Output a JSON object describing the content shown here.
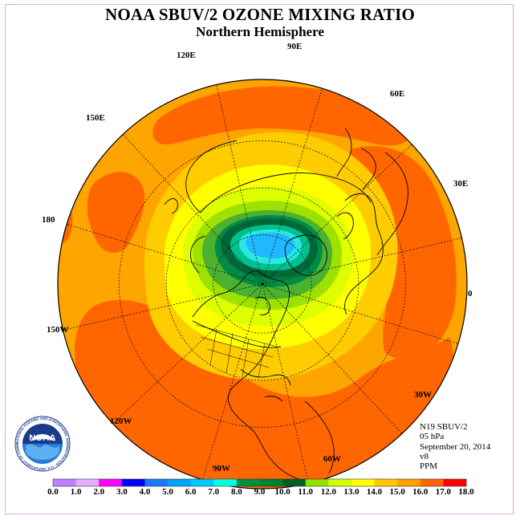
{
  "header": {
    "title": "NOAA SBUV/2 OZONE MIXING RATIO",
    "subtitle": "Northern Hemisphere"
  },
  "longitude_labels": {
    "e90": "90E",
    "e120": "120E",
    "e60": "60E",
    "e150": "150E",
    "e30": "30E",
    "w180": "180",
    "zero": "0",
    "w150": "150W",
    "w30": "30W",
    "w120": "120W",
    "w60": "60W",
    "w90": "90W"
  },
  "info": {
    "instrument": "N19 SBUV/2",
    "level": "05 hPa",
    "date": "September 20, 2014",
    "version": "v8",
    "units": "PPM"
  },
  "logo": {
    "word": "NOAA",
    "ring_text": "NATIONAL OCEANIC AND ATMOSPHERIC ADMINISTRATION · U.S. DEPARTMENT OF COMMERCE"
  },
  "colorbar": {
    "ticks": [
      "0.0",
      "1.0",
      "2.0",
      "3.0",
      "4.0",
      "5.0",
      "6.0",
      "7.0",
      "8.0",
      "9.0",
      "10.0",
      "11.0",
      "12.0",
      "13.0",
      "14.0",
      "15.0",
      "16.0",
      "17.0",
      "18.0"
    ],
    "colors": [
      "#c080ff",
      "#e0b0ff",
      "#ff00ff",
      "#0000ff",
      "#1e78ff",
      "#00a0ff",
      "#00c8ff",
      "#00ffe0",
      "#009040",
      "#008030",
      "#006020",
      "#90e000",
      "#d0ff00",
      "#ffff00",
      "#ffc800",
      "#ffa000",
      "#ff6400",
      "#ff0000",
      "#804020"
    ]
  },
  "map_colors": {
    "c9": "#008c46",
    "c10": "#006838",
    "c11": "#9ee000",
    "c12": "#ddff00",
    "c13": "#ffff00",
    "c14": "#ffcc00",
    "c15": "#ffa500",
    "c16": "#ff6600",
    "c7": "#28e8e0",
    "c6": "#20b8ff",
    "c8": "#00c090",
    "coast": "#000000",
    "grid": "#000000"
  }
}
